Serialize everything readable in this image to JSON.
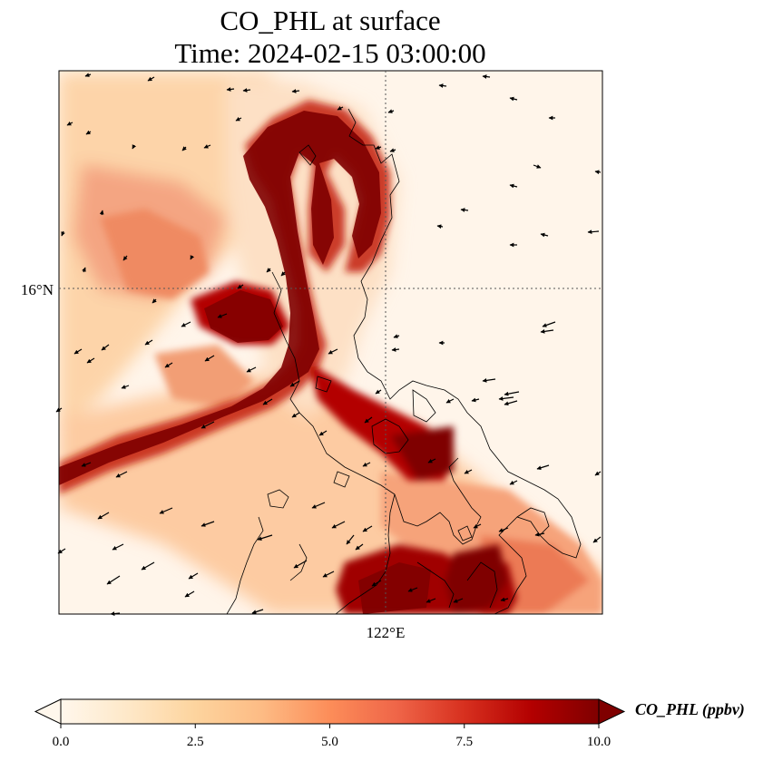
{
  "title": {
    "line1": "CO_PHL at surface",
    "line2": "Time: 2024-02-15 03:00:00"
  },
  "map": {
    "lat_label": "16°N",
    "lon_label": "122°E",
    "colormap": "OrRd",
    "color_low": "#fff7ec",
    "color_high": "#7f0000",
    "gridlines": "dotted"
  },
  "colorbar": {
    "label": "CO_PHL (ppbv)",
    "ticks": [
      "0.0",
      "2.5",
      "5.0",
      "7.5",
      "10.0"
    ],
    "min": 0,
    "max": 10,
    "extend": "both"
  }
}
